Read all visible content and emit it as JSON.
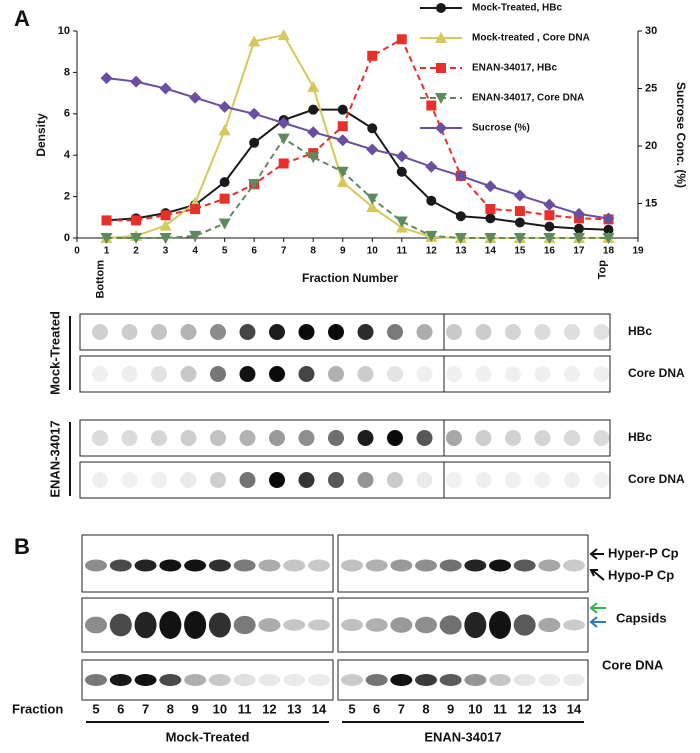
{
  "panel_a_label": "A",
  "panel_b_label": "B",
  "chart_data": {
    "type": "line",
    "x_label": "Fraction Number",
    "y_label": "Density",
    "y2_label": "Sucrose Conc. (%)",
    "x": [
      1,
      2,
      3,
      4,
      5,
      6,
      7,
      8,
      9,
      10,
      11,
      12,
      13,
      14,
      15,
      16,
      17,
      18
    ],
    "x_end_labels": [
      "Bottom",
      "Top"
    ],
    "xlim": [
      0,
      19
    ],
    "xticks": [
      0,
      1,
      2,
      3,
      4,
      5,
      6,
      7,
      8,
      9,
      10,
      11,
      12,
      13,
      14,
      15,
      16,
      17,
      18,
      19
    ],
    "ylim": [
      0,
      10
    ],
    "yticks": [
      0,
      2,
      4,
      6,
      8,
      10
    ],
    "y2lim": [
      12,
      30
    ],
    "y2ticks": [
      15,
      20,
      25,
      30
    ],
    "series": [
      {
        "name": "Mock-Treated, HBc",
        "color": "#1a1a1a",
        "marker": "circle",
        "dashed": false,
        "values": [
          0.85,
          0.95,
          1.2,
          1.6,
          2.7,
          4.6,
          5.7,
          6.2,
          6.2,
          5.3,
          3.2,
          1.8,
          1.05,
          0.95,
          0.75,
          0.55,
          0.45,
          0.4
        ]
      },
      {
        "name": "Mock-treated , Core DNA",
        "color": "#d4c95a",
        "marker": "triangle-up",
        "dashed": false,
        "values": [
          0,
          0.1,
          0.6,
          1.7,
          5.2,
          9.5,
          9.8,
          7.3,
          2.7,
          1.5,
          0.5,
          0.05,
          0,
          0,
          0,
          0,
          0,
          0
        ]
      },
      {
        "name": "ENAN-34017, HBc",
        "color": "#e8302a",
        "marker": "square",
        "dashed": true,
        "values": [
          0.85,
          0.85,
          1.1,
          1.4,
          1.9,
          2.6,
          3.6,
          4.1,
          5.4,
          8.8,
          9.6,
          6.4,
          3.0,
          1.4,
          1.3,
          1.1,
          0.95,
          0.9
        ]
      },
      {
        "name": "ENAN-34017, Core DNA",
        "color": "#5f8a5e",
        "marker": "triangle-down",
        "dashed": true,
        "values": [
          0,
          0,
          0,
          0.1,
          0.7,
          2.6,
          4.8,
          3.9,
          3.2,
          1.9,
          0.8,
          0.1,
          0,
          0,
          0,
          0,
          0,
          0
        ]
      },
      {
        "name": "Sucrose (%)",
        "color": "#6a4fa0",
        "marker": "diamond",
        "dashed": false,
        "axis": "y2",
        "values": [
          25.9,
          25.6,
          25.0,
          24.2,
          23.4,
          22.8,
          22.0,
          21.2,
          20.5,
          19.7,
          19.1,
          18.2,
          17.4,
          16.5,
          15.7,
          14.9,
          14.1,
          13.7
        ]
      }
    ]
  },
  "dot_blot": {
    "groups": [
      "Mock-Treated",
      "ENAN-34017"
    ],
    "rows": [
      "HBc",
      "Core DNA"
    ]
  },
  "panel_b": {
    "fraction_label": "Fraction",
    "fractions": [
      5,
      6,
      7,
      8,
      9,
      10,
      11,
      12,
      13,
      14
    ],
    "groups": [
      "Mock-Treated",
      "ENAN-34017"
    ],
    "labels": [
      "Hyper-P Cp",
      "Hypo-P Cp",
      "Capsids",
      "Core DNA"
    ]
  }
}
